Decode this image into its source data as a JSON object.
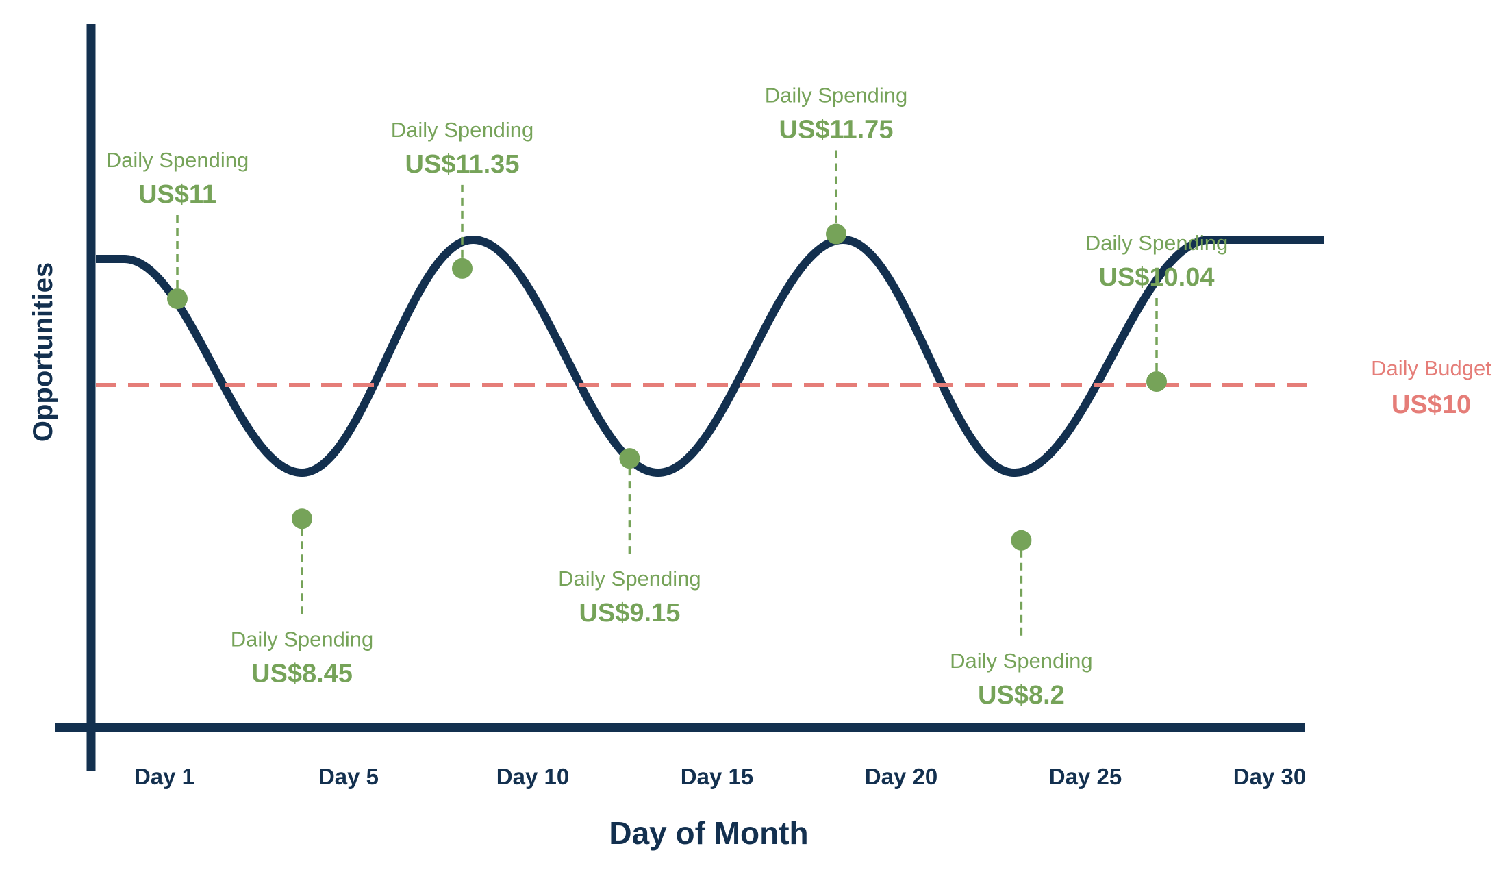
{
  "chart_data": {
    "type": "line",
    "xlabel": "Day of Month",
    "ylabel": "Opportunities",
    "x_ticks": [
      "Day 1",
      "Day 5",
      "Day 10",
      "Day 15",
      "Day 20",
      "Day 25",
      "Day 30"
    ],
    "grid": false,
    "reference_line": {
      "label": "Daily Budget",
      "value": 10,
      "value_label": "US$10",
      "color": "#e57d78",
      "style": "dashed"
    },
    "series": [
      {
        "kind": "points",
        "color": "#76a359",
        "points": [
          {
            "x": 1.5,
            "y": 11.0,
            "label": "Daily Spending",
            "value_label": "US$11",
            "placement": "above"
          },
          {
            "x": 5.0,
            "y": 8.45,
            "label": "Daily Spending",
            "value_label": "US$8.45",
            "placement": "below"
          },
          {
            "x": 9.5,
            "y": 11.35,
            "label": "Daily Spending",
            "value_label": "US$11.35",
            "placement": "above"
          },
          {
            "x": 14.2,
            "y": 9.15,
            "label": "Daily Spending",
            "value_label": "US$9.15",
            "placement": "below"
          },
          {
            "x": 20.0,
            "y": 11.75,
            "label": "Daily Spending",
            "value_label": "US$11.75",
            "placement": "above"
          },
          {
            "x": 25.2,
            "y": 8.2,
            "label": "Daily Spending",
            "value_label": "US$8.2",
            "placement": "below"
          },
          {
            "x": 29.0,
            "y": 10.04,
            "label": "Daily Spending",
            "value_label": "US$10.04",
            "placement": "above"
          }
        ]
      }
    ],
    "curve": {
      "kind": "sine-wave",
      "color": "#13304f",
      "peaks_day": [
        0.0,
        9.8,
        20.2,
        30.5
      ],
      "troughs_day": [
        5.0,
        15.0,
        25.0
      ]
    },
    "colors": {
      "axis": "#13304f",
      "spending": "#76a359",
      "budget": "#e57d78"
    }
  }
}
